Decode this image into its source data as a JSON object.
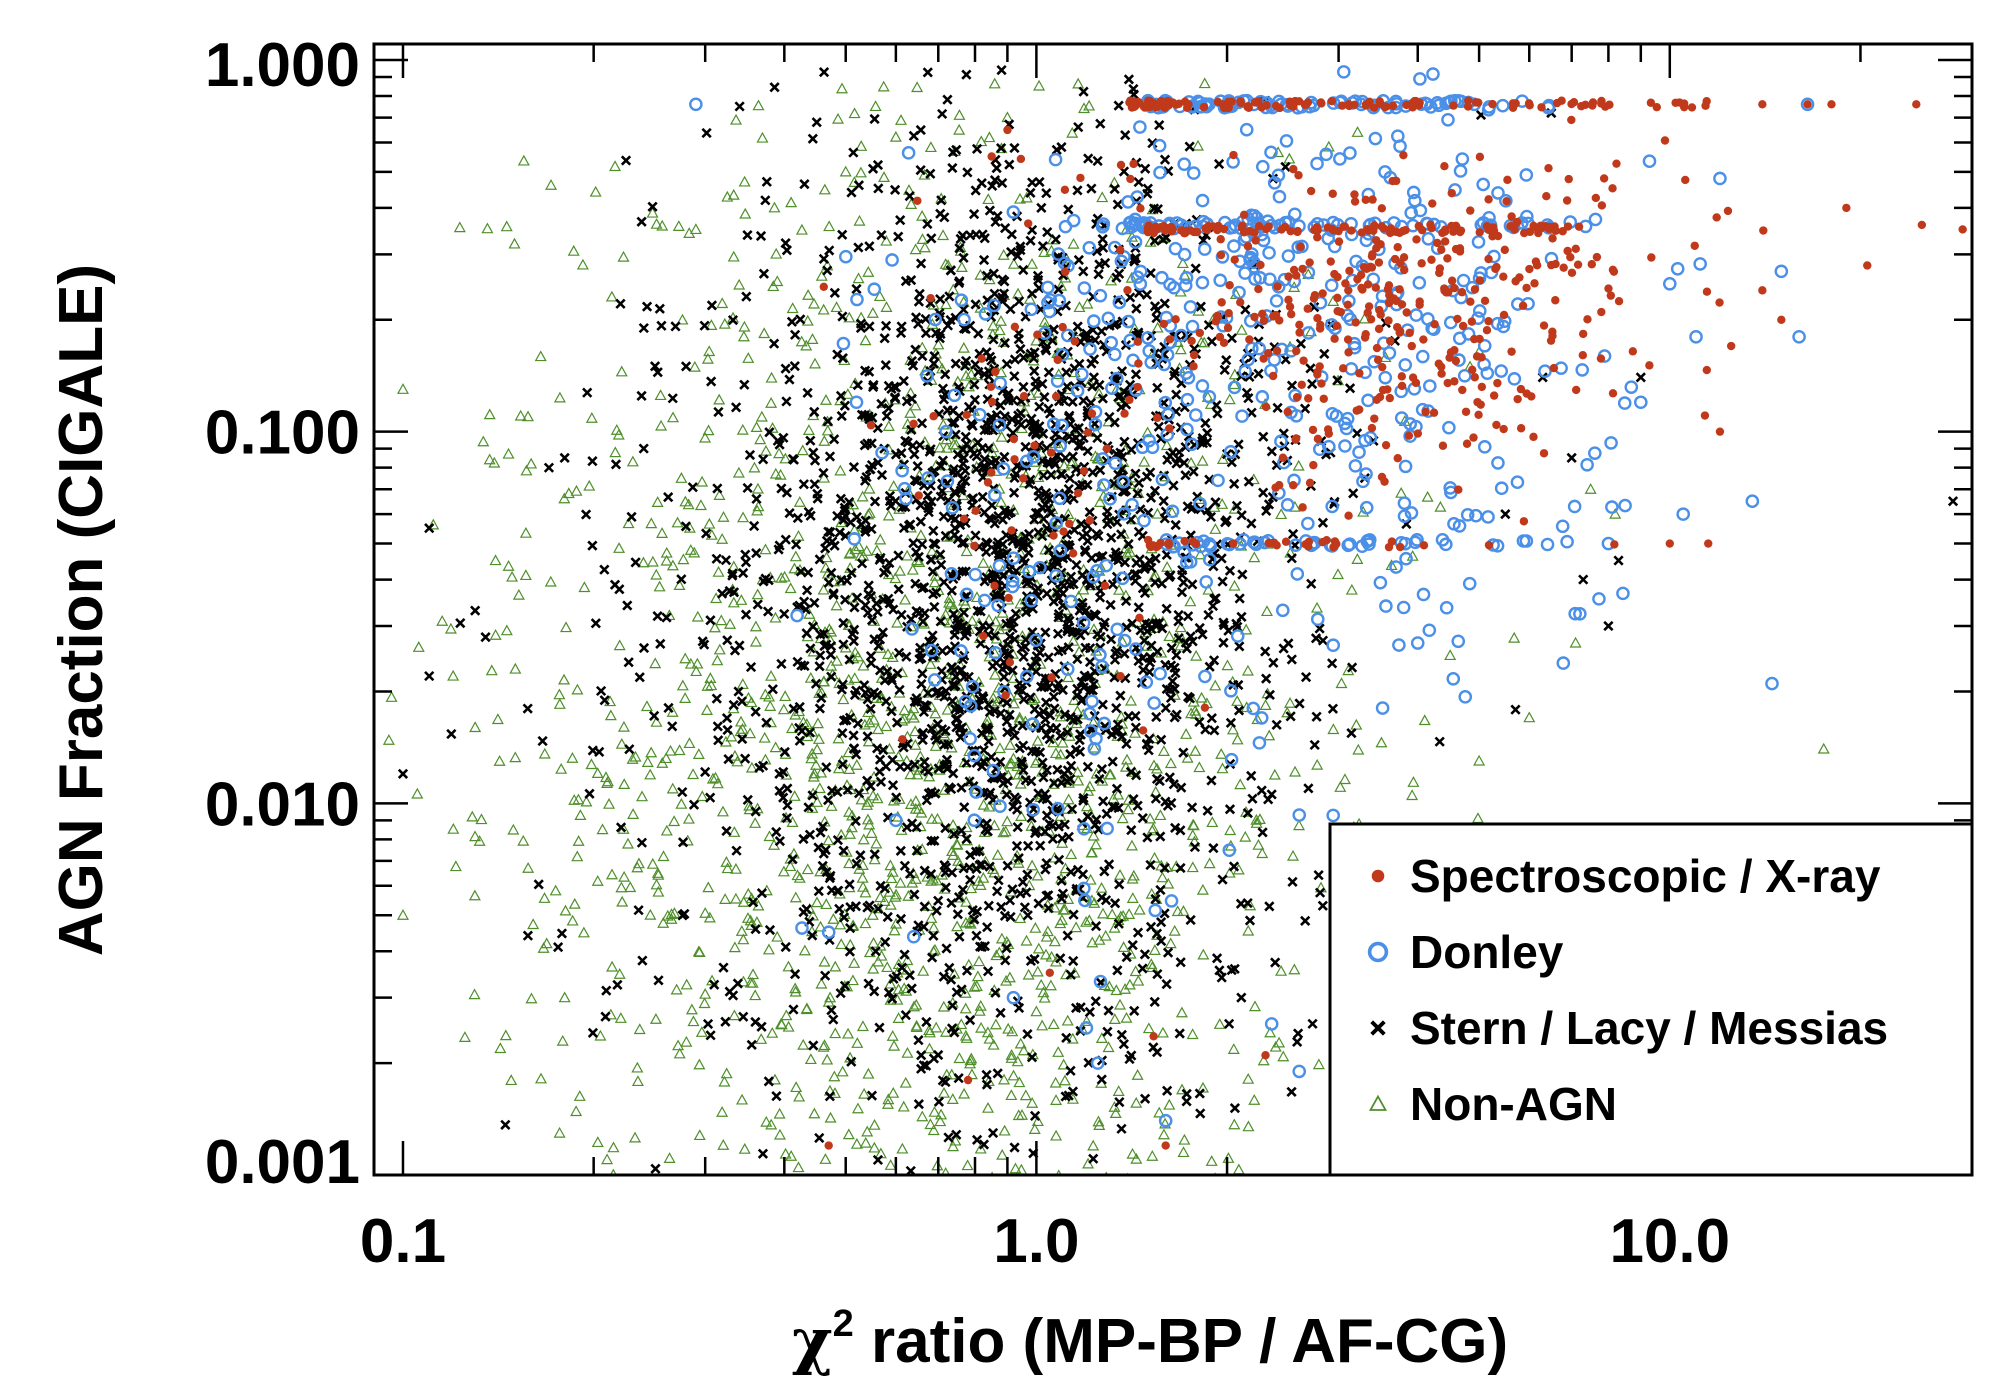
{
  "chart_data": {
    "type": "scatter",
    "title": "",
    "xlabel_prefix": "χ",
    "xlabel_sup": "2",
    "xlabel_rest": " ratio (MP-BP / AF-CG)",
    "ylabel": "AGN Fraction (CIGALE)",
    "xscale": "log",
    "yscale": "log",
    "xlim": [
      0.09,
      30
    ],
    "ylim": [
      0.001,
      1.0
    ],
    "xticks": [
      0.1,
      1.0,
      10.0
    ],
    "xtick_labels": [
      "0.1",
      "1.0",
      "10.0"
    ],
    "yticks": [
      0.001,
      0.01,
      0.1,
      1.0
    ],
    "ytick_labels": [
      "0.001",
      "0.010",
      "0.100",
      "1.000"
    ],
    "legend_position": "bottom-right",
    "series": [
      {
        "name": "Non-AGN",
        "marker": "triangle-open",
        "color": "#4e8f2a",
        "clusters": [
          {
            "n": 1400,
            "cx": 0.72,
            "sx": 0.28,
            "cy": 0.012,
            "sy": 0.85
          },
          {
            "n": 250,
            "cx": 0.35,
            "sx": 0.28,
            "cy": 0.02,
            "sy": 0.9
          },
          {
            "n": 200,
            "cx": 1.4,
            "sx": 0.28,
            "cy": 0.02,
            "sy": 0.9
          }
        ],
        "points": [
          {
            "x": 0.1,
            "y": 0.13
          },
          {
            "x": 0.1,
            "y": 0.005
          },
          {
            "x": 0.13,
            "y": 0.016
          },
          {
            "x": 0.15,
            "y": 0.32
          },
          {
            "x": 0.14,
            "y": 0.045
          },
          {
            "x": 0.12,
            "y": 0.022
          },
          {
            "x": 0.29,
            "y": 0.35
          },
          {
            "x": 0.5,
            "y": 0.5
          },
          {
            "x": 0.6,
            "y": 0.62
          },
          {
            "x": 0.66,
            "y": 0.38
          },
          {
            "x": 4.5,
            "y": 0.025
          },
          {
            "x": 6.0,
            "y": 0.017
          },
          {
            "x": 7.1,
            "y": 0.027
          },
          {
            "x": 7.5,
            "y": 0.07
          },
          {
            "x": 8.2,
            "y": 0.06
          },
          {
            "x": 17.5,
            "y": 0.014
          },
          {
            "x": 5.0,
            "y": 0.013
          },
          {
            "x": 0.18,
            "y": 0.003
          },
          {
            "x": 0.21,
            "y": 0.0011
          },
          {
            "x": 0.9,
            "y": 0.7
          }
        ]
      },
      {
        "name": "Stern / Lacy / Messias",
        "marker": "x",
        "color": "#000000",
        "clusters": [
          {
            "n": 1500,
            "cx": 0.95,
            "sx": 0.2,
            "cy": 0.045,
            "sy": 0.55
          },
          {
            "n": 500,
            "cx": 0.8,
            "sx": 0.28,
            "cy": 0.01,
            "sy": 0.7
          },
          {
            "n": 150,
            "cx": 0.45,
            "sx": 0.25,
            "cy": 0.035,
            "sy": 0.75
          },
          {
            "n": 120,
            "cx": 1.6,
            "sx": 0.15,
            "cy": 0.1,
            "sy": 0.5
          }
        ],
        "points": [
          {
            "x": 0.11,
            "y": 0.055
          },
          {
            "x": 0.11,
            "y": 0.022
          },
          {
            "x": 0.1,
            "y": 0.012
          },
          {
            "x": 0.13,
            "y": 0.033
          },
          {
            "x": 0.135,
            "y": 0.028
          },
          {
            "x": 0.17,
            "y": 0.08
          },
          {
            "x": 0.18,
            "y": 0.085
          },
          {
            "x": 0.34,
            "y": 0.75
          },
          {
            "x": 0.45,
            "y": 0.68
          },
          {
            "x": 0.24,
            "y": 0.19
          },
          {
            "x": 0.25,
            "y": 0.15
          },
          {
            "x": 28.0,
            "y": 0.065
          },
          {
            "x": 9.0,
            "y": 0.14
          },
          {
            "x": 7.0,
            "y": 0.085
          },
          {
            "x": 5.5,
            "y": 0.06
          },
          {
            "x": 6.3,
            "y": 0.14
          },
          {
            "x": 8.3,
            "y": 0.045
          },
          {
            "x": 6.5,
            "y": 0.72
          },
          {
            "x": 7.3,
            "y": 0.04
          },
          {
            "x": 8.0,
            "y": 0.03
          },
          {
            "x": 3.3,
            "y": 0.075
          }
        ]
      },
      {
        "name": "Donley",
        "marker": "circle-open",
        "color": "#4a8fe8",
        "clusters": [
          {
            "n": 130,
            "cx": 1.05,
            "sx": 0.15,
            "cy": 0.045,
            "sy": 0.5
          },
          {
            "n": 260,
            "cx": 2.7,
            "sx": 0.25,
            "cy": 0.25,
            "sy": 0.22
          },
          {
            "n": 80,
            "cx": 3.5,
            "sx": 0.18,
            "cy": 0.06,
            "sy": 0.3
          }
        ],
        "rows": [
          {
            "n": 90,
            "x0": 1.5,
            "x1": 6.5,
            "y": 0.76
          },
          {
            "n": 70,
            "x0": 1.4,
            "x1": 8.0,
            "y": 0.36
          },
          {
            "n": 45,
            "x0": 1.6,
            "x1": 6.5,
            "y": 0.05
          }
        ],
        "points": [
          {
            "x": 0.29,
            "y": 0.76
          },
          {
            "x": 16.5,
            "y": 0.76
          },
          {
            "x": 16.0,
            "y": 0.18
          },
          {
            "x": 15.0,
            "y": 0.27
          },
          {
            "x": 13.5,
            "y": 0.065
          },
          {
            "x": 14.5,
            "y": 0.021
          },
          {
            "x": 10.5,
            "y": 0.06
          },
          {
            "x": 10.0,
            "y": 0.25
          },
          {
            "x": 12.0,
            "y": 0.48
          },
          {
            "x": 11.0,
            "y": 0.18
          },
          {
            "x": 9.0,
            "y": 0.12
          },
          {
            "x": 8.0,
            "y": 0.05
          },
          {
            "x": 0.47,
            "y": 0.0045
          },
          {
            "x": 0.6,
            "y": 0.009
          },
          {
            "x": 2.6,
            "y": 0.0019
          },
          {
            "x": 2.6,
            "y": 0.0093
          },
          {
            "x": 1.6,
            "y": 0.0014
          },
          {
            "x": 1.25,
            "y": 0.002
          },
          {
            "x": 0.72,
            "y": 0.1
          },
          {
            "x": 0.52,
            "y": 0.12
          },
          {
            "x": 0.92,
            "y": 0.003
          },
          {
            "x": 2.2,
            "y": 0.018
          },
          {
            "x": 4.0,
            "y": 0.027
          }
        ]
      },
      {
        "name": "Spectroscopic / X-ray",
        "marker": "circle-filled",
        "color": "#c0391b",
        "clusters": [
          {
            "n": 60,
            "cx": 1.0,
            "sx": 0.12,
            "cy": 0.06,
            "sy": 0.45
          },
          {
            "n": 350,
            "cx": 3.8,
            "sx": 0.22,
            "cy": 0.22,
            "sy": 0.2
          }
        ],
        "rows": [
          {
            "n": 130,
            "x0": 1.4,
            "x1": 11.5,
            "y": 0.76
          },
          {
            "n": 110,
            "x0": 1.5,
            "x1": 7.5,
            "y": 0.35
          },
          {
            "n": 30,
            "x0": 1.5,
            "x1": 5.5,
            "y": 0.05
          }
        ],
        "points": [
          {
            "x": 14.0,
            "y": 0.76
          },
          {
            "x": 16.5,
            "y": 0.76
          },
          {
            "x": 18.0,
            "y": 0.76
          },
          {
            "x": 24.5,
            "y": 0.76
          },
          {
            "x": 25.0,
            "y": 0.36
          },
          {
            "x": 29.0,
            "y": 0.35
          },
          {
            "x": 19.0,
            "y": 0.4
          },
          {
            "x": 20.5,
            "y": 0.28
          },
          {
            "x": 15.0,
            "y": 0.2
          },
          {
            "x": 14.0,
            "y": 0.24
          },
          {
            "x": 12.0,
            "y": 0.1
          },
          {
            "x": 11.5,
            "y": 0.05
          },
          {
            "x": 10.0,
            "y": 0.05
          },
          {
            "x": 0.47,
            "y": 0.0012
          },
          {
            "x": 1.6,
            "y": 0.0012
          },
          {
            "x": 2.3,
            "y": 0.0021
          },
          {
            "x": 1.05,
            "y": 0.0035
          },
          {
            "x": 0.78,
            "y": 0.0018
          },
          {
            "x": 0.85,
            "y": 0.55
          },
          {
            "x": 12.5,
            "y": 0.17
          }
        ]
      }
    ],
    "legend": [
      {
        "label": "Spectroscopic / X-ray",
        "marker": "circle-filled",
        "color": "#c0391b"
      },
      {
        "label": "Donley",
        "marker": "circle-open",
        "color": "#4a8fe8"
      },
      {
        "label": "Stern / Lacy / Messias",
        "marker": "x",
        "color": "#000000"
      },
      {
        "label": "Non-AGN",
        "marker": "triangle-open",
        "color": "#4e8f2a"
      }
    ]
  }
}
